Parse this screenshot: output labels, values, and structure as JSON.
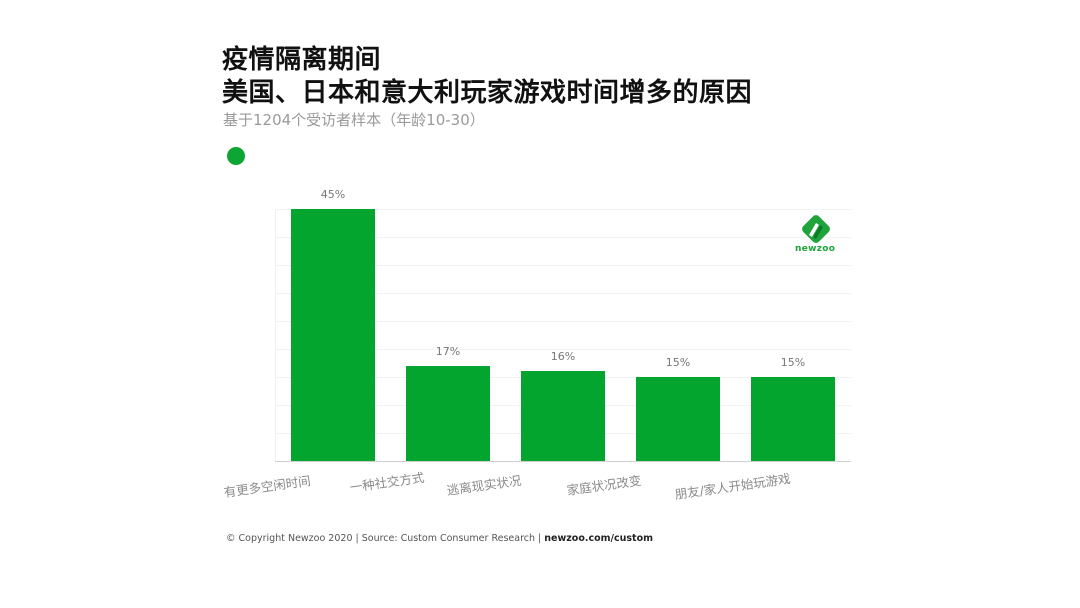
{
  "header": {
    "title_line1": "疫情隔离期间",
    "title_line2": "美国、日本和意大利玩家游戏时间增多的原因",
    "subtitle": "基于1204个受访者样本（年龄10-30）"
  },
  "legend": {
    "color": "#0da634"
  },
  "logo": {
    "text": "newzoo"
  },
  "footer": {
    "copyright": "© Copyright Newzoo 2020 | Source: Custom Consumer Research | ",
    "link": "newzoo.com/custom"
  },
  "colors": {
    "bar": "#04a52e",
    "accent": "#1fa33a"
  },
  "chart_data": {
    "type": "bar",
    "title": "疫情隔离期间 美国、日本和意大利玩家游戏时间增多的原因",
    "subtitle": "基于1204个受访者样本（年龄10-30）",
    "categories": [
      "有更多空闲时间",
      "一种社交方式",
      "逃离现实状况",
      "家庭状况改变",
      "朋友/家人开始玩游戏"
    ],
    "values": [
      45,
      17,
      16,
      15,
      15
    ],
    "value_labels": [
      "45%",
      "17%",
      "16%",
      "15%",
      "15%"
    ],
    "unit": "%",
    "xlabel": "",
    "ylabel": "",
    "ylim": [
      0,
      50
    ],
    "gridline_step": 5,
    "grid": true,
    "y_tick_labels_visible": false,
    "legend": {
      "position": "top-left",
      "entries": [
        ""
      ]
    }
  }
}
